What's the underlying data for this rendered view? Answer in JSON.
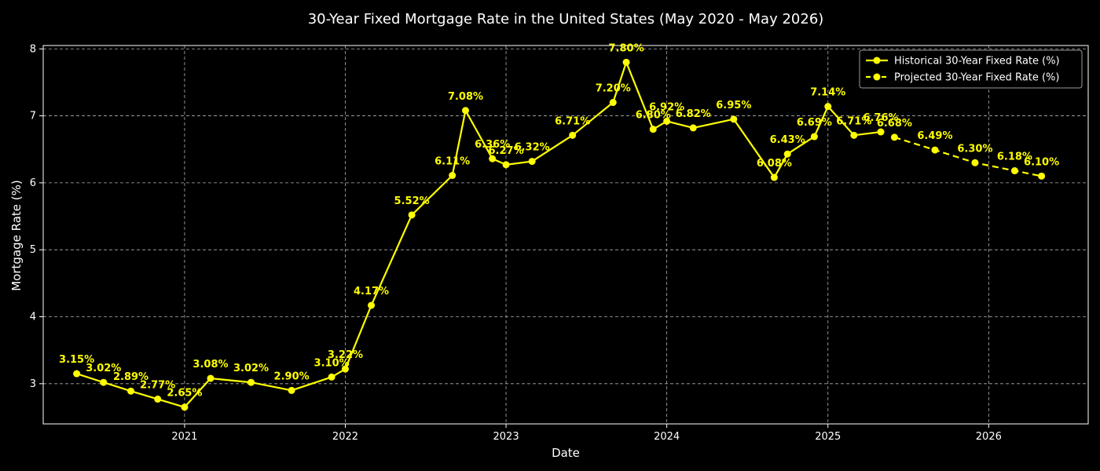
{
  "chart_data": {
    "type": "line",
    "title": "30-Year Fixed Mortgage Rate in the United States (May 2020 - May 2026)",
    "xlabel": "Date",
    "ylabel": "Mortgage Rate (%)",
    "x_ticks": [
      "2021",
      "2022",
      "2023",
      "2024",
      "2025",
      "2026"
    ],
    "y_ticks": [
      3,
      4,
      5,
      6,
      7,
      8
    ],
    "ylim": [
      2.4,
      8.05
    ],
    "xlim": [
      "2020-02-15",
      "2026-08-15"
    ],
    "grid": true,
    "legend_position": "top-right",
    "line_color": "#ffff00",
    "series": [
      {
        "name": "Historical 30-Year Fixed Rate (%)",
        "style": "solid",
        "points": [
          {
            "date": "2020-05-01",
            "value": 3.15,
            "label": "3.15%"
          },
          {
            "date": "2020-07-01",
            "value": 3.02,
            "label": "3.02%"
          },
          {
            "date": "2020-09-01",
            "value": 2.89,
            "label": "2.89%"
          },
          {
            "date": "2020-11-01",
            "value": 2.77,
            "label": "2.77%"
          },
          {
            "date": "2021-01-01",
            "value": 2.65,
            "label": "2.65%"
          },
          {
            "date": "2021-03-01",
            "value": 3.08,
            "label": "3.08%"
          },
          {
            "date": "2021-06-01",
            "value": 3.02,
            "label": "3.02%"
          },
          {
            "date": "2021-09-01",
            "value": 2.9,
            "label": "2.90%"
          },
          {
            "date": "2021-12-01",
            "value": 3.1,
            "label": "3.10%"
          },
          {
            "date": "2022-01-01",
            "value": 3.22,
            "label": "3.22%"
          },
          {
            "date": "2022-03-01",
            "value": 4.17,
            "label": "4.17%"
          },
          {
            "date": "2022-06-01",
            "value": 5.52,
            "label": "5.52%"
          },
          {
            "date": "2022-09-01",
            "value": 6.11,
            "label": "6.11%"
          },
          {
            "date": "2022-10-01",
            "value": 7.08,
            "label": "7.08%"
          },
          {
            "date": "2022-12-01",
            "value": 6.36,
            "label": "6.36%"
          },
          {
            "date": "2023-01-01",
            "value": 6.27,
            "label": "6.27%"
          },
          {
            "date": "2023-03-01",
            "value": 6.32,
            "label": "6.32%"
          },
          {
            "date": "2023-06-01",
            "value": 6.71,
            "label": "6.71%"
          },
          {
            "date": "2023-09-01",
            "value": 7.2,
            "label": "7.20%"
          },
          {
            "date": "2023-10-01",
            "value": 7.8,
            "label": "7.80%"
          },
          {
            "date": "2023-12-01",
            "value": 6.8,
            "label": "6.80%"
          },
          {
            "date": "2024-01-01",
            "value": 6.92,
            "label": "6.92%"
          },
          {
            "date": "2024-03-01",
            "value": 6.82,
            "label": "6.82%"
          },
          {
            "date": "2024-06-01",
            "value": 6.95,
            "label": "6.95%"
          },
          {
            "date": "2024-09-01",
            "value": 6.08,
            "label": "6.08%"
          },
          {
            "date": "2024-10-01",
            "value": 6.43,
            "label": "6.43%"
          },
          {
            "date": "2024-12-01",
            "value": 6.69,
            "label": "6.69%"
          },
          {
            "date": "2025-01-01",
            "value": 7.14,
            "label": "7.14%"
          },
          {
            "date": "2025-03-01",
            "value": 6.71,
            "label": "6.71%"
          },
          {
            "date": "2025-05-01",
            "value": 6.76,
            "label": "6.76%"
          }
        ]
      },
      {
        "name": "Projected 30-Year Fixed Rate (%)",
        "style": "dashed",
        "points": [
          {
            "date": "2025-06-01",
            "value": 6.68,
            "label": "6.68%"
          },
          {
            "date": "2025-09-01",
            "value": 6.49,
            "label": "6.49%"
          },
          {
            "date": "2025-12-01",
            "value": 6.3,
            "label": "6.30%"
          },
          {
            "date": "2026-03-01",
            "value": 6.18,
            "label": "6.18%"
          },
          {
            "date": "2026-05-01",
            "value": 6.1,
            "label": "6.10%"
          }
        ]
      }
    ]
  }
}
